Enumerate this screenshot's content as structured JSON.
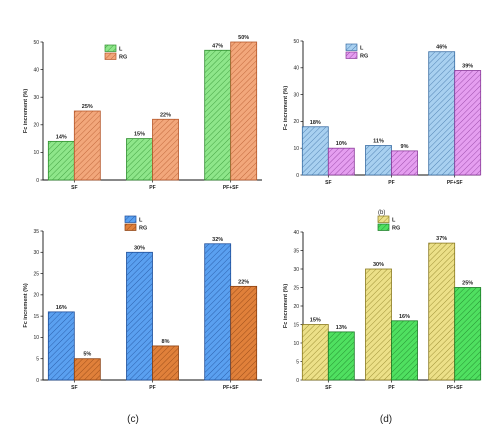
{
  "panel_captions": [
    "(c)",
    "(d)"
  ],
  "stray_caption": "(b)",
  "chart_data": [
    {
      "type": "bar",
      "categories": [
        "SF",
        "PF",
        "PF+SF"
      ],
      "ylabel": "Fc increment (%)",
      "ylim": [
        0,
        50
      ],
      "yticks": [
        0,
        10,
        20,
        30,
        40,
        50
      ],
      "legend_position": "top-left",
      "series": [
        {
          "name": "L",
          "values": [
            14,
            15,
            47
          ],
          "labels": [
            "14%",
            "15%",
            "47%"
          ],
          "color": "#8ee68a",
          "edge": "#2f8f2f"
        },
        {
          "name": "RG",
          "values": [
            25,
            22,
            50
          ],
          "labels": [
            "25%",
            "22%",
            "50%"
          ],
          "color": "#f2a77b",
          "edge": "#b5572a"
        }
      ]
    },
    {
      "type": "bar",
      "categories": [
        "SF",
        "PF",
        "PF+SF"
      ],
      "ylabel": "Fc increment (%)",
      "ylim": [
        0,
        50
      ],
      "yticks": [
        0,
        10,
        20,
        30,
        40,
        50
      ],
      "legend_position": "top-left",
      "series": [
        {
          "name": "L",
          "values": [
            18,
            11,
            46
          ],
          "labels": [
            "18%",
            "11%",
            "46%"
          ],
          "color": "#a8d0f0",
          "edge": "#3b6fa5"
        },
        {
          "name": "RG",
          "values": [
            10,
            9,
            39
          ],
          "labels": [
            "10%",
            "9%",
            "39%"
          ],
          "color": "#e59ef0",
          "edge": "#8a3a9a"
        }
      ]
    },
    {
      "type": "bar",
      "categories": [
        "SF",
        "PF",
        "PF+SF"
      ],
      "ylabel": "Fc increment (%)",
      "ylim": [
        0,
        35
      ],
      "yticks": [
        0,
        5,
        10,
        15,
        20,
        25,
        30,
        35
      ],
      "legend_position": "top-center",
      "series": [
        {
          "name": "L",
          "values": [
            16,
            30,
            32
          ],
          "labels": [
            "16%",
            "30%",
            "32%"
          ],
          "color": "#5aa0f0",
          "edge": "#1f4f9a"
        },
        {
          "name": "RG",
          "values": [
            5,
            8,
            22
          ],
          "labels": [
            "5%",
            "8%",
            "22%"
          ],
          "color": "#e0803a",
          "edge": "#8a3f10"
        }
      ]
    },
    {
      "type": "bar",
      "categories": [
        "SF",
        "PF",
        "PF+SF"
      ],
      "ylabel": "Fc increment (%)",
      "ylim": [
        0,
        40
      ],
      "yticks": [
        0,
        5,
        10,
        15,
        20,
        25,
        30,
        35,
        40
      ],
      "legend_position": "top-left",
      "series": [
        {
          "name": "L",
          "values": [
            15,
            30,
            37
          ],
          "labels": [
            "15%",
            "30%",
            "37%"
          ],
          "color": "#ece088",
          "edge": "#8a7a20"
        },
        {
          "name": "RG",
          "values": [
            13,
            16,
            25
          ],
          "labels": [
            "13%",
            "16%",
            "25%"
          ],
          "color": "#4fe060",
          "edge": "#1a7a25"
        }
      ]
    }
  ]
}
